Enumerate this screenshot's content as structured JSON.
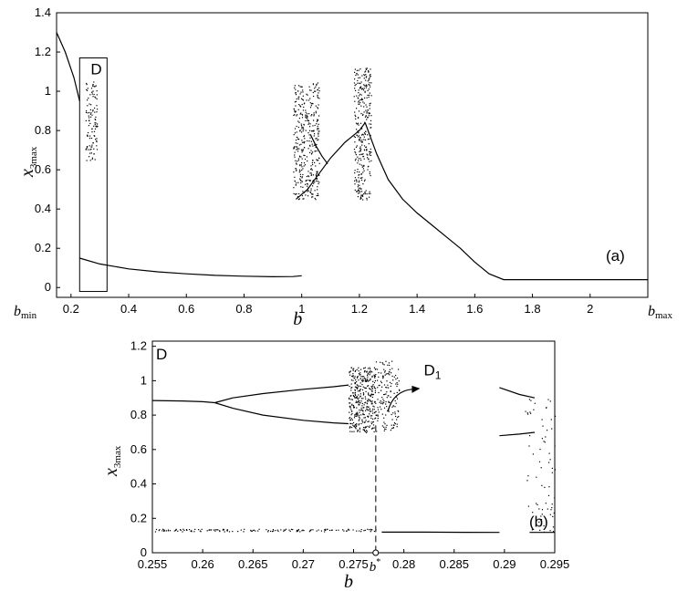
{
  "chart_data": [
    {
      "id": "a",
      "type": "scatter",
      "description": "Bifurcation diagram of x3max versus b",
      "ylabel_main": "x",
      "ylabel_sub": "3max",
      "xlabel": "b",
      "xlim": [
        0.15,
        2.2
      ],
      "ylim": [
        -0.05,
        1.4
      ],
      "xticks": [
        "0.2",
        "0.4",
        "0.6",
        "0.8",
        "1",
        "1.2",
        "1.4",
        "1.6",
        "1.8",
        "2"
      ],
      "xtick_values": [
        0.2,
        0.4,
        0.6,
        0.8,
        1.0,
        1.2,
        1.4,
        1.6,
        1.8,
        2.0
      ],
      "yticks": [
        "0",
        "0.2",
        "0.4",
        "0.6",
        "0.8",
        "1",
        "1.2",
        "1.4"
      ],
      "ytick_values": [
        0,
        0.2,
        0.4,
        0.6,
        0.8,
        1.0,
        1.2,
        1.4
      ],
      "x_end_labels": {
        "left_main": "b",
        "left_sub": "min",
        "right_main": "b",
        "right_sub": "max"
      },
      "panel_label": "(a)",
      "inset_box": {
        "label": "D",
        "x_range": [
          0.23,
          0.325
        ],
        "y_range": [
          -0.02,
          1.17
        ]
      },
      "series": [
        {
          "kind": "line",
          "points": [
            [
              0.15,
              1.3
            ],
            [
              0.18,
              1.2
            ],
            [
              0.21,
              1.07
            ],
            [
              0.23,
              0.95
            ]
          ]
        },
        {
          "kind": "line",
          "points": [
            [
              0.23,
              0.15
            ],
            [
              0.3,
              0.12
            ],
            [
              0.4,
              0.095
            ],
            [
              0.5,
              0.08
            ],
            [
              0.6,
              0.07
            ],
            [
              0.7,
              0.062
            ],
            [
              0.8,
              0.058
            ],
            [
              0.9,
              0.055
            ],
            [
              0.97,
              0.056
            ],
            [
              1.0,
              0.06
            ]
          ]
        },
        {
          "kind": "line",
          "points": [
            [
              0.98,
              0.45
            ],
            [
              1.02,
              0.5
            ],
            [
              1.05,
              0.56
            ],
            [
              1.08,
              0.62
            ],
            [
              1.1,
              0.66
            ],
            [
              1.15,
              0.74
            ],
            [
              1.2,
              0.8
            ],
            [
              1.22,
              0.84
            ]
          ]
        },
        {
          "kind": "line",
          "points": [
            [
              1.03,
              0.78
            ],
            [
              1.05,
              0.72
            ],
            [
              1.07,
              0.67
            ],
            [
              1.09,
              0.63
            ]
          ]
        },
        {
          "kind": "line",
          "points": [
            [
              1.22,
              0.84
            ],
            [
              1.26,
              0.68
            ],
            [
              1.3,
              0.55
            ],
            [
              1.35,
              0.45
            ],
            [
              1.4,
              0.38
            ],
            [
              1.45,
              0.32
            ],
            [
              1.5,
              0.26
            ],
            [
              1.55,
              0.2
            ],
            [
              1.6,
              0.13
            ],
            [
              1.65,
              0.07
            ],
            [
              1.7,
              0.04
            ],
            [
              1.75,
              0.04
            ],
            [
              1.8,
              0.04
            ],
            [
              2.0,
              0.04
            ],
            [
              2.2,
              0.04
            ]
          ]
        },
        {
          "kind": "chaos",
          "x_range": [
            0.97,
            1.06
          ],
          "y_range": [
            0.45,
            1.05
          ],
          "count": 380
        },
        {
          "kind": "chaos",
          "x_range": [
            1.18,
            1.24
          ],
          "y_range": [
            0.45,
            1.12
          ],
          "count": 320
        },
        {
          "kind": "chaos",
          "x_range": [
            0.25,
            0.29
          ],
          "y_range": [
            0.65,
            1.05
          ],
          "count": 110
        }
      ]
    },
    {
      "id": "b",
      "type": "scatter",
      "description": "Zoomed bifurcation diagram of region D",
      "ylabel_main": "x",
      "ylabel_sub": "3max",
      "xlabel": "b",
      "xlim": [
        0.255,
        0.295
      ],
      "ylim": [
        0,
        1.23
      ],
      "xticks": [
        "0.255",
        "0.26",
        "0.265",
        "0.27",
        "0.275",
        "0.28",
        "0.285",
        "0.29",
        "0.295"
      ],
      "xtick_values": [
        0.255,
        0.26,
        0.265,
        0.27,
        0.275,
        0.28,
        0.285,
        0.29,
        0.295
      ],
      "yticks": [
        "0",
        "0.2",
        "0.4",
        "0.6",
        "0.8",
        "1",
        "1.2"
      ],
      "ytick_values": [
        0,
        0.2,
        0.4,
        0.6,
        0.8,
        1.0,
        1.2
      ],
      "special_x": {
        "value": 0.2772,
        "label_main": "b",
        "label_sup": "*"
      },
      "panel_label": "(b)",
      "region_label": "D",
      "arrow_label_main": "D",
      "arrow_label_sub": "1",
      "series": [
        {
          "kind": "line",
          "points": [
            [
              0.255,
              0.885
            ],
            [
              0.258,
              0.882
            ],
            [
              0.26,
              0.878
            ],
            [
              0.2612,
              0.872
            ]
          ]
        },
        {
          "kind": "line",
          "points": [
            [
              0.2612,
              0.872
            ],
            [
              0.263,
              0.9
            ],
            [
              0.266,
              0.925
            ],
            [
              0.27,
              0.95
            ],
            [
              0.273,
              0.965
            ],
            [
              0.2745,
              0.975
            ]
          ]
        },
        {
          "kind": "line",
          "points": [
            [
              0.2612,
              0.872
            ],
            [
              0.263,
              0.84
            ],
            [
              0.266,
              0.8
            ],
            [
              0.27,
              0.77
            ],
            [
              0.273,
              0.755
            ],
            [
              0.2745,
              0.75
            ]
          ]
        },
        {
          "kind": "line",
          "points": [
            [
              0.2895,
              0.96
            ],
            [
              0.2915,
              0.92
            ],
            [
              0.293,
              0.9
            ]
          ]
        },
        {
          "kind": "line",
          "points": [
            [
              0.2895,
              0.68
            ],
            [
              0.2915,
              0.69
            ],
            [
              0.293,
              0.7
            ]
          ]
        },
        {
          "kind": "line",
          "points": [
            [
              0.2778,
              0.12
            ],
            [
              0.282,
              0.12
            ],
            [
              0.286,
              0.119
            ],
            [
              0.2895,
              0.118
            ]
          ]
        },
        {
          "kind": "line",
          "points": [
            [
              0.2925,
              0.118
            ],
            [
              0.295,
              0.118
            ]
          ]
        },
        {
          "kind": "chaos",
          "x_range": [
            0.2745,
            0.2772
          ],
          "y_range": [
            0.7,
            1.08
          ],
          "count": 380
        },
        {
          "kind": "chaos",
          "x_range": [
            0.2772,
            0.2795
          ],
          "y_range": [
            0.7,
            1.12
          ],
          "count": 150
        },
        {
          "kind": "chaos",
          "x_range": [
            0.292,
            0.295
          ],
          "y_range": [
            0.12,
            0.9
          ],
          "count": 70
        },
        {
          "kind": "chaos",
          "x_range": [
            0.255,
            0.2772
          ],
          "y_range": [
            0.125,
            0.14
          ],
          "count": 140
        }
      ]
    }
  ]
}
